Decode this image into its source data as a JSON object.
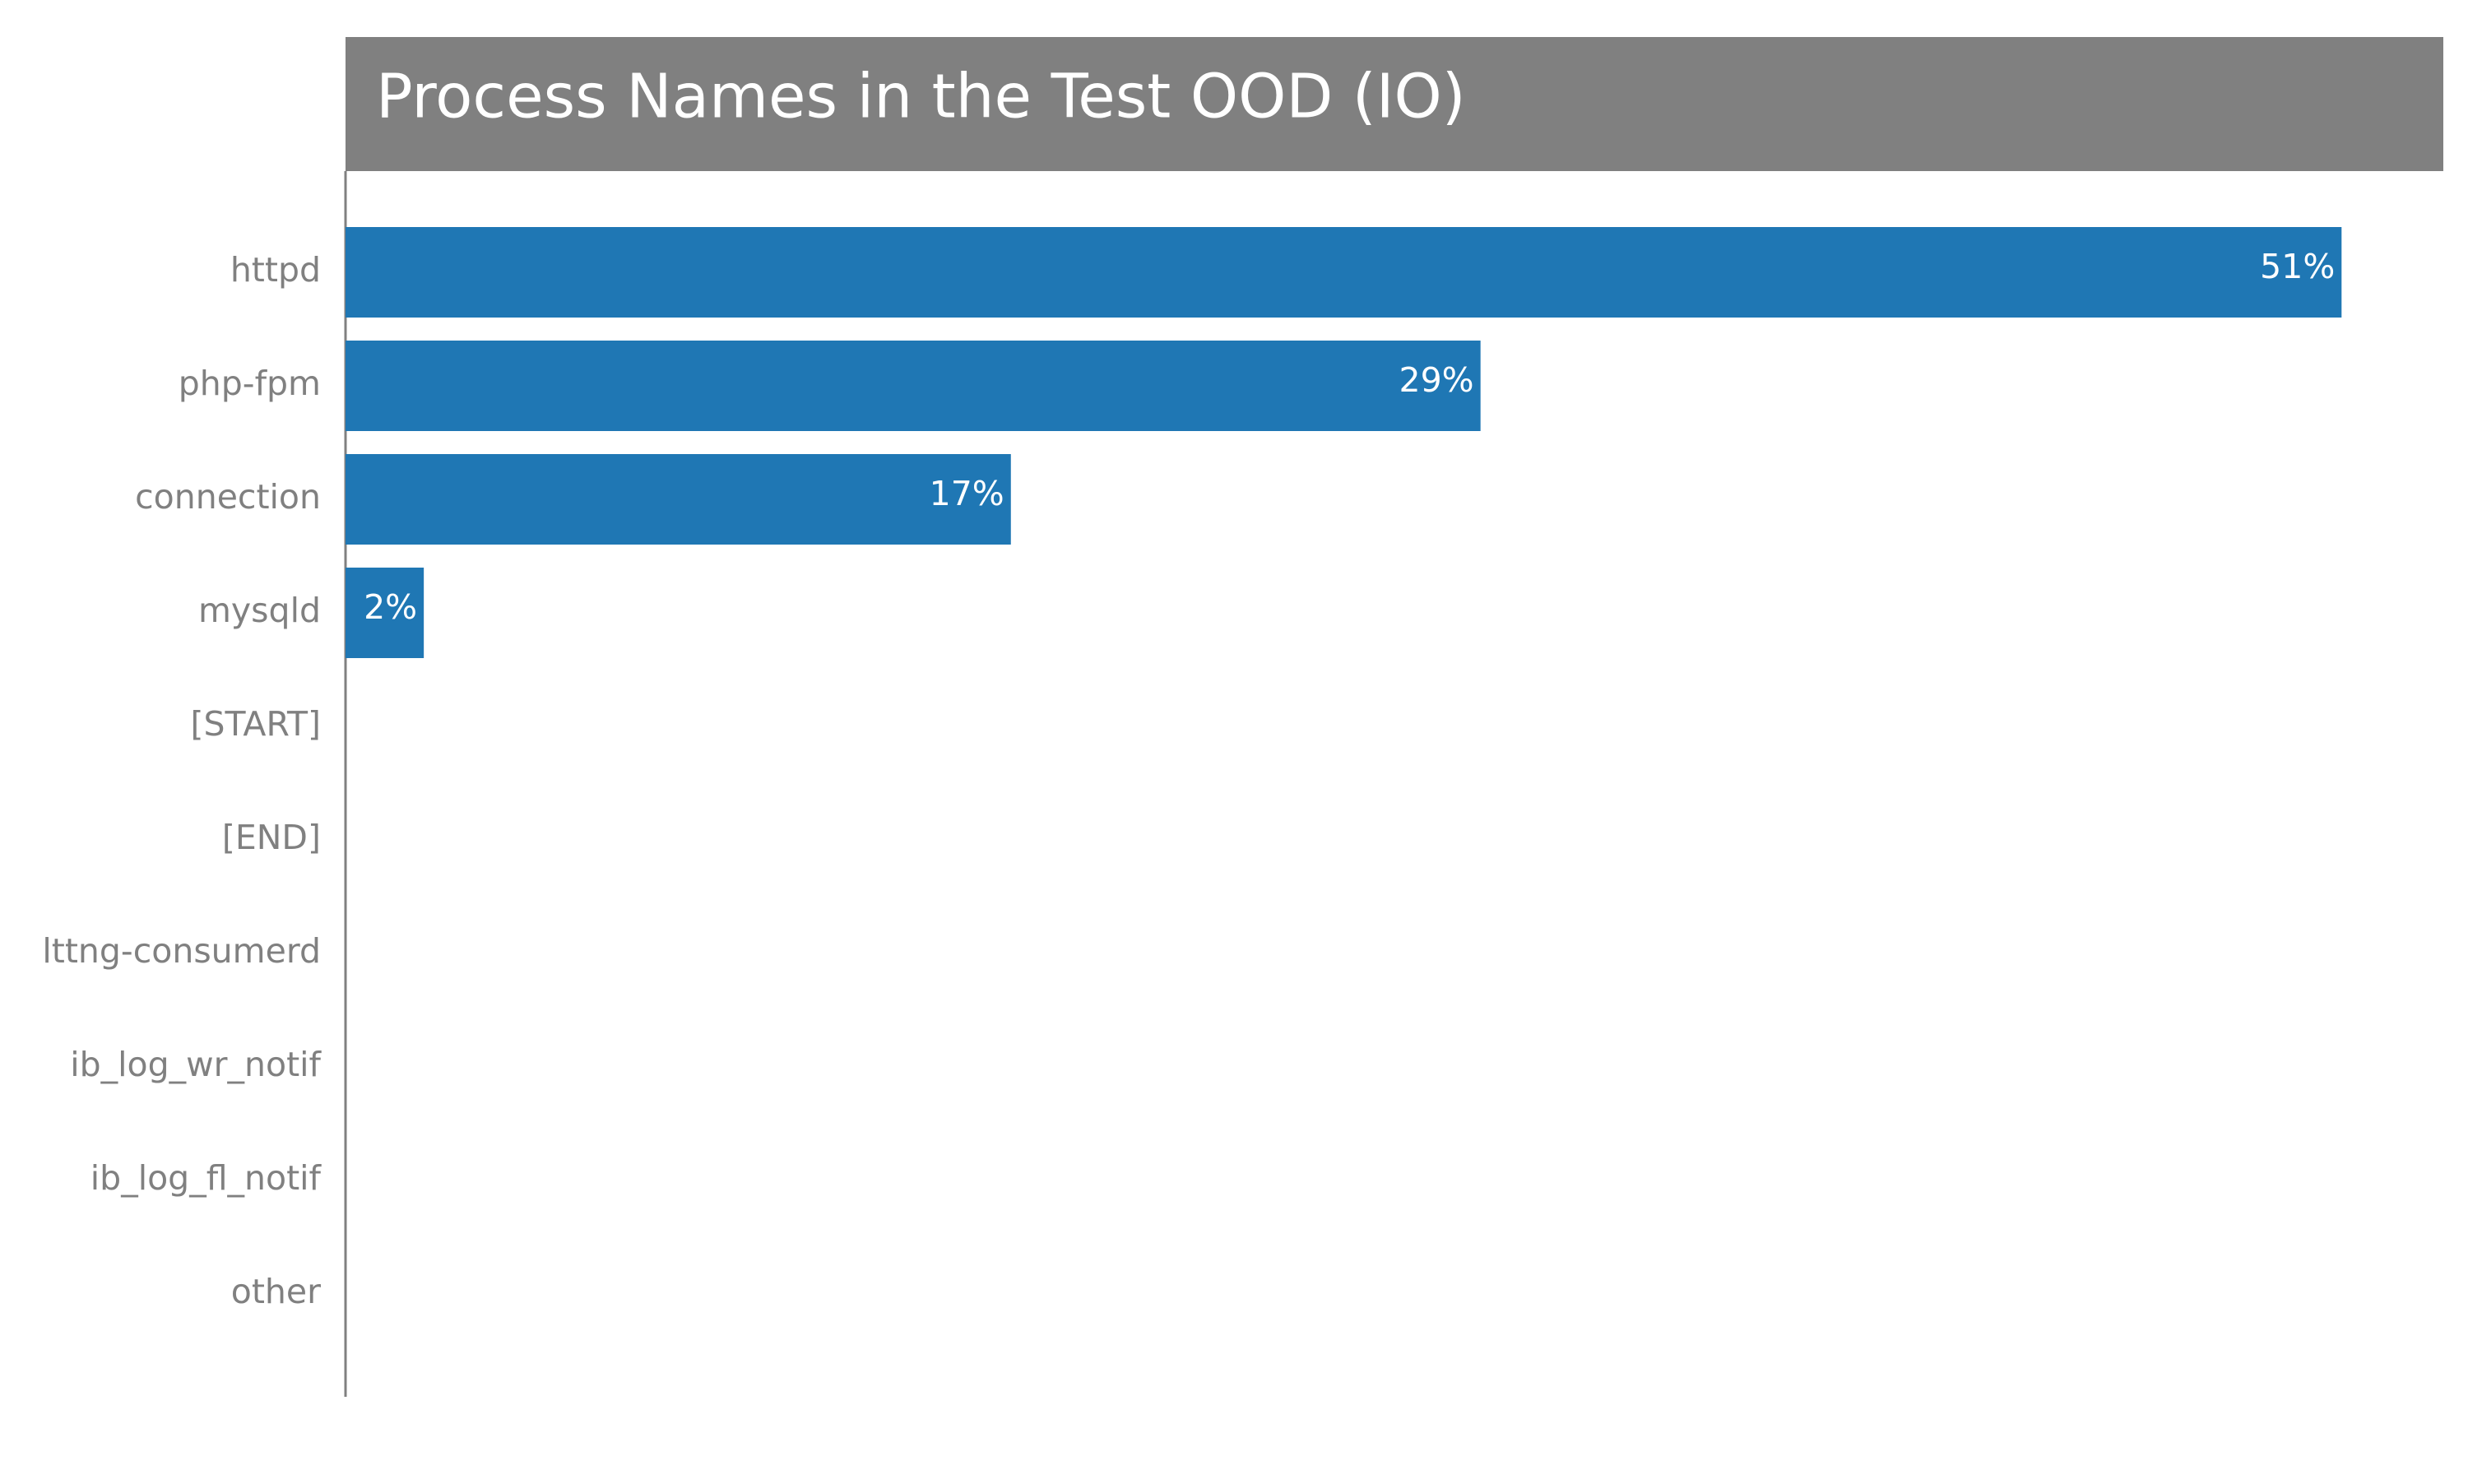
{
  "chart_data": {
    "type": "bar",
    "orientation": "horizontal",
    "title": "Process Names in the Test OOD (IO)",
    "categories": [
      "httpd",
      "php-fpm",
      "connection",
      "mysqld",
      "[START]",
      "[END]",
      "lttng-consumerd",
      "ib_log_wr_notif",
      "ib_log_fl_notif",
      "other"
    ],
    "values": [
      51,
      29,
      17,
      2,
      0,
      0,
      0,
      0,
      0,
      0
    ],
    "value_labels": [
      "51%",
      "29%",
      "17%",
      "2%",
      "",
      "",
      "",
      "",
      "",
      ""
    ],
    "unit": "%",
    "xlim": [
      0,
      53.6
    ],
    "grid": false,
    "legend": "none",
    "colors": {
      "bar": "#1f77b4",
      "title_band": "#808080",
      "title_text": "#ffffff",
      "axis": "#808080",
      "tick_label": "#808080",
      "value_label": "#ffffff"
    }
  }
}
